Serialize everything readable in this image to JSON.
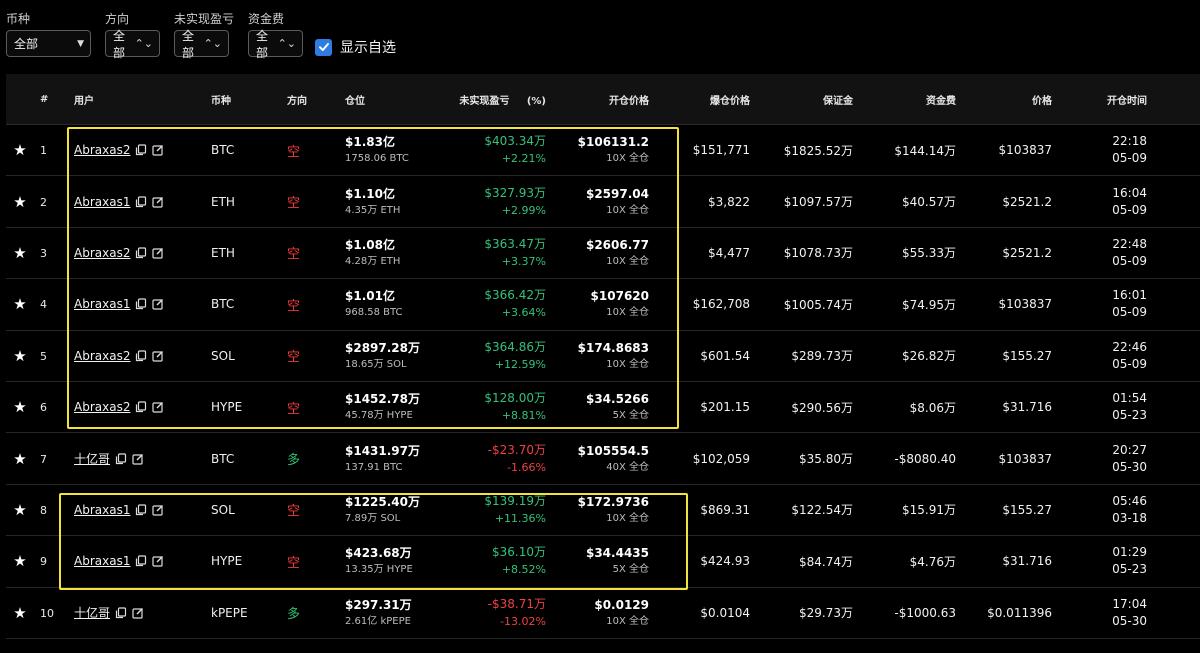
{
  "filters": {
    "coin": {
      "label": "币种",
      "value": "全部"
    },
    "direction": {
      "label": "方向",
      "value": "全部"
    },
    "pnl": {
      "label": "未实现盈亏",
      "value": "全部"
    },
    "funding": {
      "label": "资金费",
      "value": "全部"
    },
    "show_watchlist": {
      "label": "显示自选",
      "checked": true
    }
  },
  "table": {
    "headers": {
      "num": "#",
      "user": "用户",
      "coin": "币种",
      "direction": "方向",
      "position": "仓位",
      "pnl": "未实现盈亏",
      "pnl_pct": "(%)",
      "open_price": "开仓价格",
      "liq_price": "爆仓价格",
      "margin": "保证金",
      "funding": "资金费",
      "price": "价格",
      "open_time": "开仓时间"
    },
    "rows": [
      {
        "num": "1",
        "user": "Abraxas2",
        "coin": "BTC",
        "dir": "空",
        "dir_type": "short",
        "pos_value": "$1.83亿",
        "pos_size": "1758.06 BTC",
        "pnl": "$403.34万",
        "pnl_pct": "+2.21%",
        "pnl_type": "green",
        "open_price": "$106131.2",
        "leverage": "10X 全仓",
        "liq_price": "$151,771",
        "margin": "$1825.52万",
        "funding": "$144.14万",
        "fund_type": "green",
        "price": "$103837",
        "time": "22:18",
        "date": "05-09"
      },
      {
        "num": "2",
        "user": "Abraxas1",
        "coin": "ETH",
        "dir": "空",
        "dir_type": "short",
        "pos_value": "$1.10亿",
        "pos_size": "4.35万 ETH",
        "pnl": "$327.93万",
        "pnl_pct": "+2.99%",
        "pnl_type": "green",
        "open_price": "$2597.04",
        "leverage": "10X 全仓",
        "liq_price": "$3,822",
        "margin": "$1097.57万",
        "funding": "$40.57万",
        "fund_type": "green",
        "price": "$2521.2",
        "time": "16:04",
        "date": "05-09"
      },
      {
        "num": "3",
        "user": "Abraxas2",
        "coin": "ETH",
        "dir": "空",
        "dir_type": "short",
        "pos_value": "$1.08亿",
        "pos_size": "4.28万 ETH",
        "pnl": "$363.47万",
        "pnl_pct": "+3.37%",
        "pnl_type": "green",
        "open_price": "$2606.77",
        "leverage": "10X 全仓",
        "liq_price": "$4,477",
        "margin": "$1078.73万",
        "funding": "$55.33万",
        "fund_type": "green",
        "price": "$2521.2",
        "time": "22:48",
        "date": "05-09"
      },
      {
        "num": "4",
        "user": "Abraxas1",
        "coin": "BTC",
        "dir": "空",
        "dir_type": "short",
        "pos_value": "$1.01亿",
        "pos_size": "968.58 BTC",
        "pnl": "$366.42万",
        "pnl_pct": "+3.64%",
        "pnl_type": "green",
        "open_price": "$107620",
        "leverage": "10X 全仓",
        "liq_price": "$162,708",
        "margin": "$1005.74万",
        "funding": "$74.95万",
        "fund_type": "green",
        "price": "$103837",
        "time": "16:01",
        "date": "05-09"
      },
      {
        "num": "5",
        "user": "Abraxas2",
        "coin": "SOL",
        "dir": "空",
        "dir_type": "short",
        "pos_value": "$2897.28万",
        "pos_size": "18.65万 SOL",
        "pnl": "$364.86万",
        "pnl_pct": "+12.59%",
        "pnl_type": "green",
        "open_price": "$174.8683",
        "leverage": "10X 全仓",
        "liq_price": "$601.54",
        "margin": "$289.73万",
        "funding": "$26.82万",
        "fund_type": "green",
        "price": "$155.27",
        "time": "22:46",
        "date": "05-09"
      },
      {
        "num": "6",
        "user": "Abraxas2",
        "coin": "HYPE",
        "dir": "空",
        "dir_type": "short",
        "pos_value": "$1452.78万",
        "pos_size": "45.78万 HYPE",
        "pnl": "$128.00万",
        "pnl_pct": "+8.81%",
        "pnl_type": "green",
        "open_price": "$34.5266",
        "leverage": "5X 全仓",
        "liq_price": "$201.15",
        "margin": "$290.56万",
        "funding": "$8.06万",
        "fund_type": "green",
        "price": "$31.716",
        "time": "01:54",
        "date": "05-23"
      },
      {
        "num": "7",
        "user": "十亿哥",
        "coin": "BTC",
        "dir": "多",
        "dir_type": "long",
        "pos_value": "$1431.97万",
        "pos_size": "137.91 BTC",
        "pnl": "-$23.70万",
        "pnl_pct": "-1.66%",
        "pnl_type": "red",
        "open_price": "$105554.5",
        "leverage": "40X 全仓",
        "liq_price": "$102,059",
        "margin": "$35.80万",
        "funding": "-$8080.40",
        "fund_type": "red",
        "price": "$103837",
        "time": "20:27",
        "date": "05-30"
      },
      {
        "num": "8",
        "user": "Abraxas1",
        "coin": "SOL",
        "dir": "空",
        "dir_type": "short",
        "pos_value": "$1225.40万",
        "pos_size": "7.89万 SOL",
        "pnl": "$139.19万",
        "pnl_pct": "+11.36%",
        "pnl_type": "green",
        "open_price": "$172.9736",
        "leverage": "10X 全仓",
        "liq_price": "$869.31",
        "margin": "$122.54万",
        "funding": "$15.91万",
        "fund_type": "green",
        "price": "$155.27",
        "time": "05:46",
        "date": "03-18"
      },
      {
        "num": "9",
        "user": "Abraxas1",
        "coin": "HYPE",
        "dir": "空",
        "dir_type": "short",
        "pos_value": "$423.68万",
        "pos_size": "13.35万 HYPE",
        "pnl": "$36.10万",
        "pnl_pct": "+8.52%",
        "pnl_type": "green",
        "open_price": "$34.4435",
        "leverage": "5X 全仓",
        "liq_price": "$424.93",
        "margin": "$84.74万",
        "funding": "$4.76万",
        "fund_type": "green",
        "price": "$31.716",
        "time": "01:29",
        "date": "05-23"
      },
      {
        "num": "10",
        "user": "十亿哥",
        "coin": "kPEPE",
        "dir": "多",
        "dir_type": "long",
        "pos_value": "$297.31万",
        "pos_size": "2.61亿 kPEPE",
        "pnl": "-$38.71万",
        "pnl_pct": "-13.02%",
        "pnl_type": "red",
        "open_price": "$0.0129",
        "leverage": "10X 全仓",
        "liq_price": "$0.0104",
        "margin": "$29.73万",
        "funding": "-$1000.63",
        "fund_type": "red",
        "price": "$0.011396",
        "time": "17:04",
        "date": "05-30"
      }
    ]
  },
  "colors": {
    "short": "#ef3b3b",
    "long": "#2fbf71",
    "profit": "#34c17a",
    "loss": "#ef4141",
    "highlight": "#f2e33a",
    "accent": "#2f7de1"
  }
}
